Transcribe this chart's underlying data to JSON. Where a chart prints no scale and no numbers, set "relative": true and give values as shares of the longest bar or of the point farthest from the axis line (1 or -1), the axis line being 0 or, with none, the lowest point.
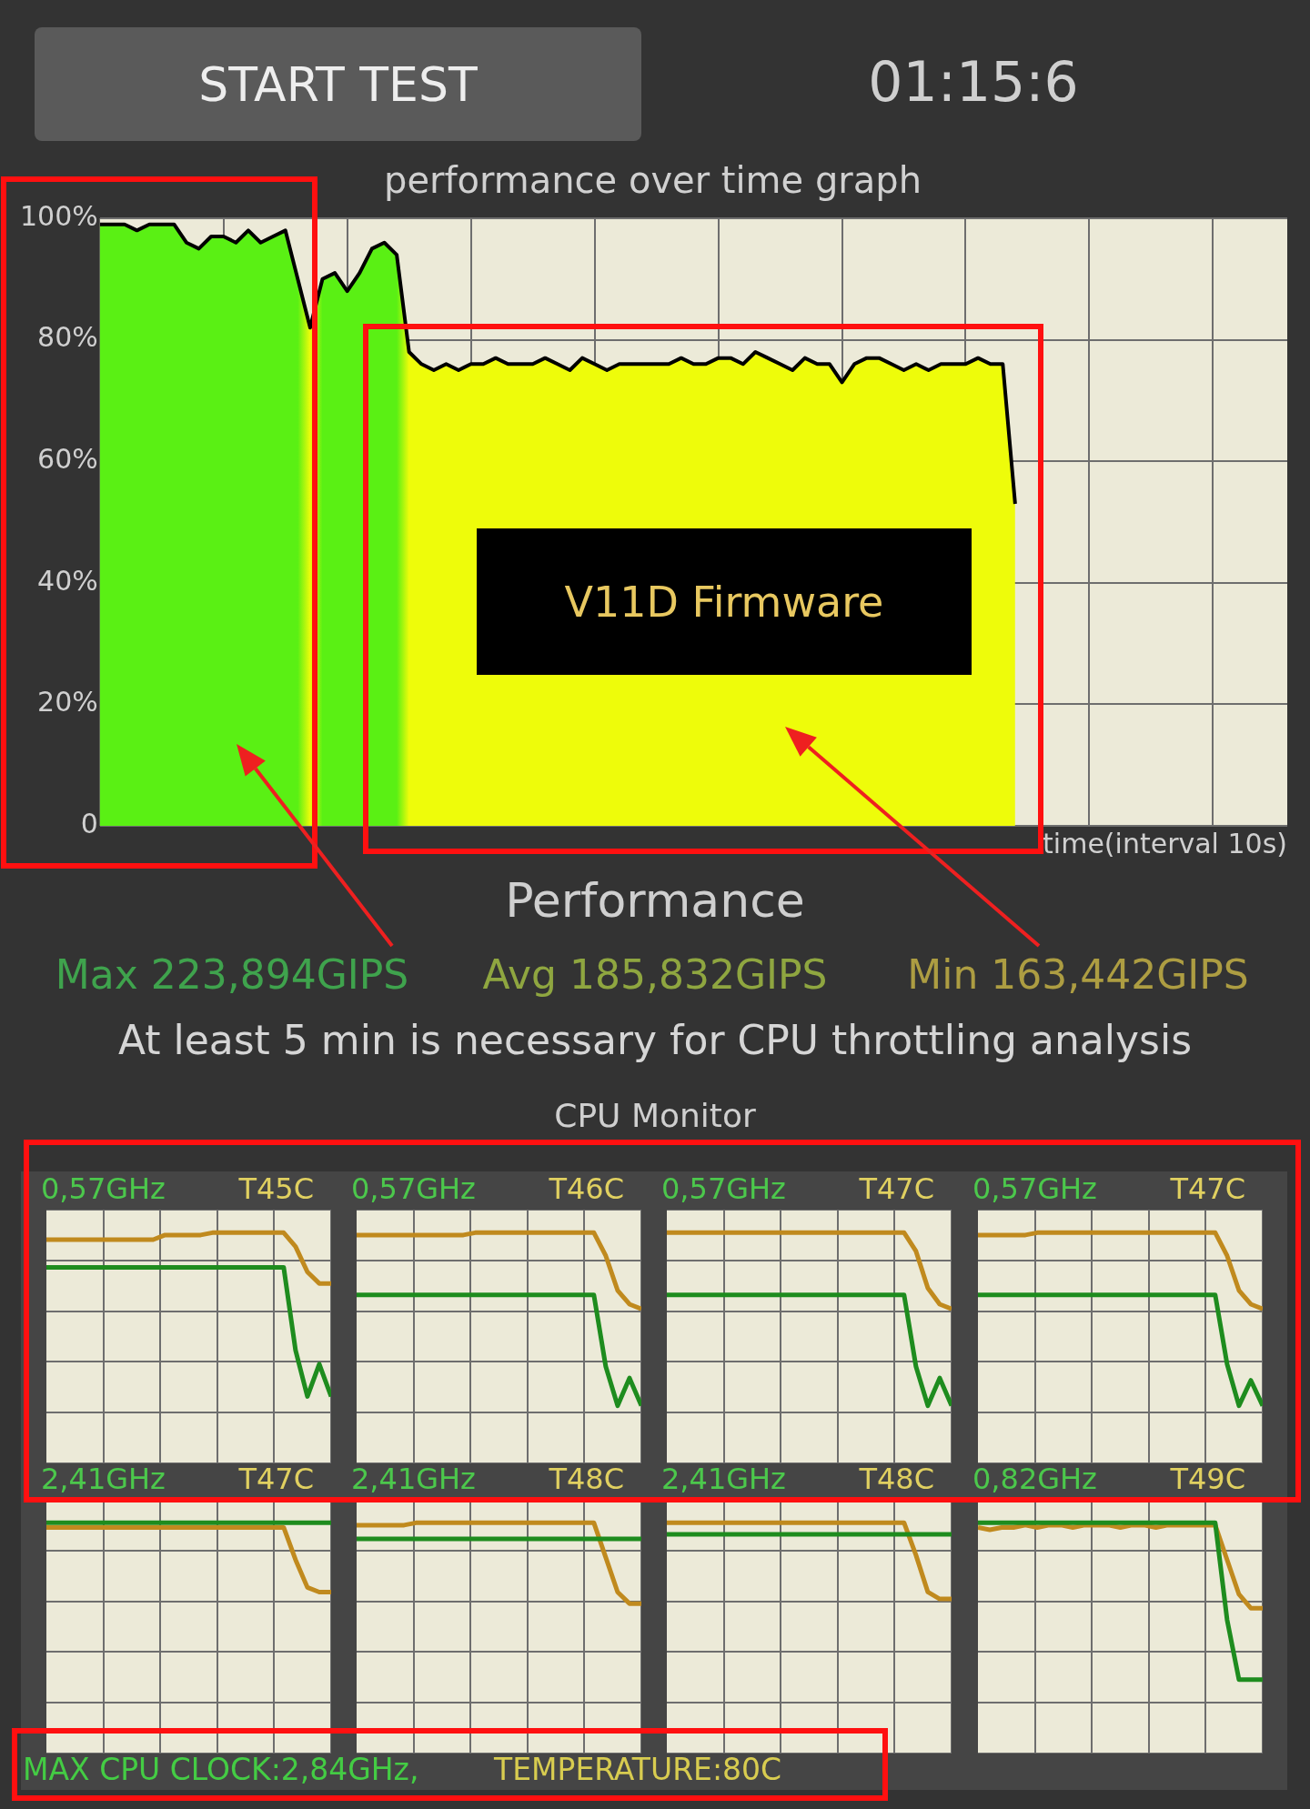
{
  "chart_data": [
    {
      "type": "area",
      "title": "performance over time graph",
      "xlabel": "time(interval 10s)",
      "categories": [
        null,
        null,
        null,
        null,
        null,
        null,
        null,
        null,
        null,
        null,
        null,
        null,
        null,
        null,
        null,
        null,
        null,
        null,
        null,
        null,
        null,
        null,
        null,
        null,
        null,
        null,
        null,
        null,
        null,
        null,
        null,
        null,
        null,
        null,
        null,
        null,
        null,
        null,
        null,
        null,
        null,
        null,
        null,
        null,
        null,
        null,
        null,
        null,
        null,
        null,
        null,
        null,
        null,
        null,
        null,
        null,
        null,
        null,
        null,
        null,
        null,
        null,
        null,
        null,
        null,
        null,
        null,
        null,
        null,
        null,
        null,
        null,
        null,
        null,
        null,
        null,
        null,
        null,
        null,
        null,
        null,
        null,
        null,
        null,
        null,
        null,
        null,
        null,
        null,
        null,
        null,
        null,
        null,
        null,
        null,
        null,
        null
      ],
      "series": [
        {
          "color": "#000000",
          "values": [
            99,
            99,
            99,
            98,
            99,
            99,
            99,
            96,
            95,
            97,
            97,
            96,
            98,
            96,
            97,
            98,
            90,
            82,
            90,
            91,
            88,
            91,
            95,
            96,
            94,
            78,
            76,
            75,
            76,
            75,
            76,
            76,
            77,
            76,
            76,
            76,
            77,
            76,
            75,
            77,
            76,
            75,
            76,
            76,
            76,
            76,
            76,
            77,
            76,
            76,
            77,
            77,
            76,
            78,
            77,
            76,
            75,
            77,
            76,
            76,
            73,
            76,
            77,
            77,
            76,
            75,
            76,
            75,
            76,
            76,
            76,
            77,
            76,
            76,
            53,
            null,
            null,
            null,
            null,
            null,
            null,
            null,
            null,
            null,
            null,
            null,
            null,
            null,
            null,
            null,
            null,
            null,
            null,
            null,
            null,
            null,
            null
          ]
        }
      ],
      "ylim": [
        0,
        100
      ],
      "yticks": [
        0,
        {
          "value": 20,
          "label": "20%"
        },
        {
          "value": 40,
          "label": "40%"
        },
        {
          "value": 60,
          "label": "60%"
        },
        {
          "value": 80,
          "label": "80%"
        },
        {
          "value": 100,
          "label": "100%"
        }
      ],
      "grid": true,
      "annotations": [
        "START TEST",
        "01:15:6",
        "V11D Firmware",
        "Performance",
        "Max 223,894GIPS",
        "Avg 185,832GIPS",
        "Min 163,442GIPS",
        "At least 5 min is necessary for CPU throttling analysis",
        "CPU Monitor",
        "MAX CPU CLOCK:2,84GHz,",
        "TEMPERATURE:80C"
      ]
    },
    {
      "type": "line",
      "relative": true,
      "grid": true,
      "categories": [
        null,
        null,
        null,
        null,
        null,
        null,
        null,
        null,
        null,
        null,
        null,
        null,
        null,
        null,
        null,
        null,
        null,
        null,
        null,
        null,
        null,
        null,
        null,
        null,
        null
      ],
      "series": [
        {
          "color": "#1e8c1e",
          "values": [
            0.85,
            0.85,
            0.85,
            0.85,
            0.85,
            0.85,
            0.85,
            0.85,
            0.85,
            0.85,
            0.85,
            0.85,
            0.85,
            0.85,
            0.85,
            0.85,
            0.85,
            0.85,
            0.85,
            0.85,
            0.85,
            0.49,
            0.29,
            0.43,
            0.29
          ]
        },
        {
          "color": "#c08a1e",
          "values": [
            0.97,
            0.97,
            0.97,
            0.97,
            0.97,
            0.97,
            0.97,
            0.97,
            0.97,
            0.97,
            0.99,
            0.99,
            0.99,
            0.99,
            1,
            1,
            1,
            1,
            1,
            1,
            1,
            0.94,
            0.83,
            0.78,
            0.78
          ]
        }
      ],
      "annotations": [
        "0,57GHz",
        "T45C"
      ]
    },
    {
      "type": "line",
      "relative": true,
      "grid": true,
      "categories": [
        null,
        null,
        null,
        null,
        null,
        null,
        null,
        null,
        null,
        null,
        null,
        null,
        null,
        null,
        null,
        null,
        null,
        null,
        null,
        null,
        null,
        null,
        null,
        null,
        null
      ],
      "series": [
        {
          "color": "#1e8c1e",
          "values": [
            0.73,
            0.73,
            0.73,
            0.73,
            0.73,
            0.73,
            0.73,
            0.73,
            0.73,
            0.73,
            0.73,
            0.73,
            0.73,
            0.73,
            0.73,
            0.73,
            0.73,
            0.73,
            0.73,
            0.73,
            0.73,
            0.42,
            0.25,
            0.37,
            0.25
          ]
        },
        {
          "color": "#c08a1e",
          "values": [
            0.99,
            0.99,
            0.99,
            0.99,
            0.99,
            0.99,
            0.99,
            0.99,
            0.99,
            0.99,
            1,
            1,
            1,
            1,
            1,
            1,
            1,
            1,
            1,
            1,
            1,
            0.9,
            0.75,
            0.69,
            0.67
          ]
        }
      ],
      "annotations": [
        "0,57GHz",
        "T46C"
      ]
    },
    {
      "type": "line",
      "relative": true,
      "grid": true,
      "categories": [
        null,
        null,
        null,
        null,
        null,
        null,
        null,
        null,
        null,
        null,
        null,
        null,
        null,
        null,
        null,
        null,
        null,
        null,
        null,
        null,
        null,
        null,
        null,
        null,
        null
      ],
      "series": [
        {
          "color": "#1e8c1e",
          "values": [
            0.73,
            0.73,
            0.73,
            0.73,
            0.73,
            0.73,
            0.73,
            0.73,
            0.73,
            0.73,
            0.73,
            0.73,
            0.73,
            0.73,
            0.73,
            0.73,
            0.73,
            0.73,
            0.73,
            0.73,
            0.73,
            0.42,
            0.25,
            0.37,
            0.25
          ]
        },
        {
          "color": "#c08a1e",
          "values": [
            1,
            1,
            1,
            1,
            1,
            1,
            1,
            1,
            1,
            1,
            1,
            1,
            1,
            1,
            1,
            1,
            1,
            1,
            1,
            1,
            1,
            0.92,
            0.76,
            0.69,
            0.67
          ]
        }
      ],
      "annotations": [
        "0,57GHz",
        "T47C"
      ]
    },
    {
      "type": "line",
      "relative": true,
      "grid": true,
      "categories": [
        null,
        null,
        null,
        null,
        null,
        null,
        null,
        null,
        null,
        null,
        null,
        null,
        null,
        null,
        null,
        null,
        null,
        null,
        null,
        null,
        null,
        null,
        null,
        null,
        null
      ],
      "series": [
        {
          "color": "#1e8c1e",
          "values": [
            0.73,
            0.73,
            0.73,
            0.73,
            0.73,
            0.73,
            0.73,
            0.73,
            0.73,
            0.73,
            0.73,
            0.73,
            0.73,
            0.73,
            0.73,
            0.73,
            0.73,
            0.73,
            0.73,
            0.73,
            0.73,
            0.43,
            0.25,
            0.36,
            0.25
          ]
        },
        {
          "color": "#c08a1e",
          "values": [
            0.99,
            0.99,
            0.99,
            0.99,
            0.99,
            1,
            1,
            1,
            1,
            1,
            1,
            1,
            1,
            1,
            1,
            1,
            1,
            1,
            1,
            1,
            1,
            0.9,
            0.75,
            0.69,
            0.67
          ]
        }
      ],
      "annotations": [
        "0,57GHz",
        "T47C"
      ]
    },
    {
      "type": "line",
      "relative": true,
      "grid": true,
      "categories": [
        null,
        null,
        null,
        null,
        null,
        null,
        null,
        null,
        null,
        null,
        null,
        null,
        null,
        null,
        null,
        null,
        null,
        null,
        null,
        null,
        null,
        null,
        null,
        null,
        null
      ],
      "series": [
        {
          "color": "#1e8c1e",
          "values": [
            1,
            1,
            1,
            1,
            1,
            1,
            1,
            1,
            1,
            1,
            1,
            1,
            1,
            1,
            1,
            1,
            1,
            1,
            1,
            1,
            1,
            1,
            1,
            1,
            1
          ]
        },
        {
          "color": "#c08a1e",
          "values": [
            0.98,
            0.98,
            0.98,
            0.98,
            0.98,
            0.98,
            0.98,
            0.98,
            0.98,
            0.98,
            0.98,
            0.98,
            0.98,
            0.98,
            0.98,
            0.98,
            0.98,
            0.98,
            0.98,
            0.98,
            0.98,
            0.84,
            0.72,
            0.7,
            0.7
          ]
        }
      ],
      "annotations": [
        "2,41GHz",
        "T47C"
      ]
    },
    {
      "type": "line",
      "relative": true,
      "grid": true,
      "categories": [
        null,
        null,
        null,
        null,
        null,
        null,
        null,
        null,
        null,
        null,
        null,
        null,
        null,
        null,
        null,
        null,
        null,
        null,
        null,
        null,
        null,
        null,
        null,
        null,
        null
      ],
      "series": [
        {
          "color": "#1e8c1e",
          "values": [
            0.93,
            0.93,
            0.93,
            0.93,
            0.93,
            0.93,
            0.93,
            0.93,
            0.93,
            0.93,
            0.93,
            0.93,
            0.93,
            0.93,
            0.93,
            0.93,
            0.93,
            0.93,
            0.93,
            0.93,
            0.93,
            0.93,
            0.93,
            0.93,
            0.93
          ]
        },
        {
          "color": "#c08a1e",
          "values": [
            0.99,
            0.99,
            0.99,
            0.99,
            0.99,
            1,
            1,
            1,
            1,
            1,
            1,
            1,
            1,
            1,
            1,
            1,
            1,
            1,
            1,
            1,
            1,
            0.85,
            0.7,
            0.65,
            0.65
          ]
        }
      ],
      "annotations": [
        "2,41GHz",
        "T48C"
      ]
    },
    {
      "type": "line",
      "relative": true,
      "grid": true,
      "categories": [
        null,
        null,
        null,
        null,
        null,
        null,
        null,
        null,
        null,
        null,
        null,
        null,
        null,
        null,
        null,
        null,
        null,
        null,
        null,
        null,
        null,
        null,
        null,
        null,
        null
      ],
      "series": [
        {
          "color": "#1e8c1e",
          "values": [
            0.95,
            0.95,
            0.95,
            0.95,
            0.95,
            0.95,
            0.95,
            0.95,
            0.95,
            0.95,
            0.95,
            0.95,
            0.95,
            0.95,
            0.95,
            0.95,
            0.95,
            0.95,
            0.95,
            0.95,
            0.95,
            0.95,
            0.95,
            0.95,
            0.95
          ]
        },
        {
          "color": "#c08a1e",
          "values": [
            1,
            1,
            1,
            1,
            1,
            1,
            1,
            1,
            1,
            1,
            1,
            1,
            1,
            1,
            1,
            1,
            1,
            1,
            1,
            1,
            1,
            0.86,
            0.7,
            0.67,
            0.67
          ]
        }
      ],
      "annotations": [
        "2,41GHz",
        "T48C"
      ]
    },
    {
      "type": "line",
      "relative": true,
      "grid": true,
      "categories": [
        null,
        null,
        null,
        null,
        null,
        null,
        null,
        null,
        null,
        null,
        null,
        null,
        null,
        null,
        null,
        null,
        null,
        null,
        null,
        null,
        null,
        null,
        null,
        null,
        null
      ],
      "series": [
        {
          "color": "#1e8c1e",
          "values": [
            1,
            1,
            1,
            1,
            1,
            1,
            1,
            1,
            1,
            1,
            1,
            1,
            1,
            1,
            1,
            1,
            1,
            1,
            1,
            1,
            1,
            0.58,
            0.32,
            0.32,
            0.32
          ]
        },
        {
          "color": "#c08a1e",
          "values": [
            0.98,
            0.97,
            0.98,
            0.98,
            0.99,
            0.98,
            0.99,
            0.99,
            0.98,
            0.99,
            0.99,
            0.99,
            0.98,
            0.99,
            0.99,
            0.98,
            0.99,
            0.99,
            0.99,
            0.99,
            0.99,
            0.84,
            0.69,
            0.63,
            0.63
          ]
        }
      ],
      "annotations": [
        "0,82GHz",
        "T49C"
      ]
    }
  ]
}
